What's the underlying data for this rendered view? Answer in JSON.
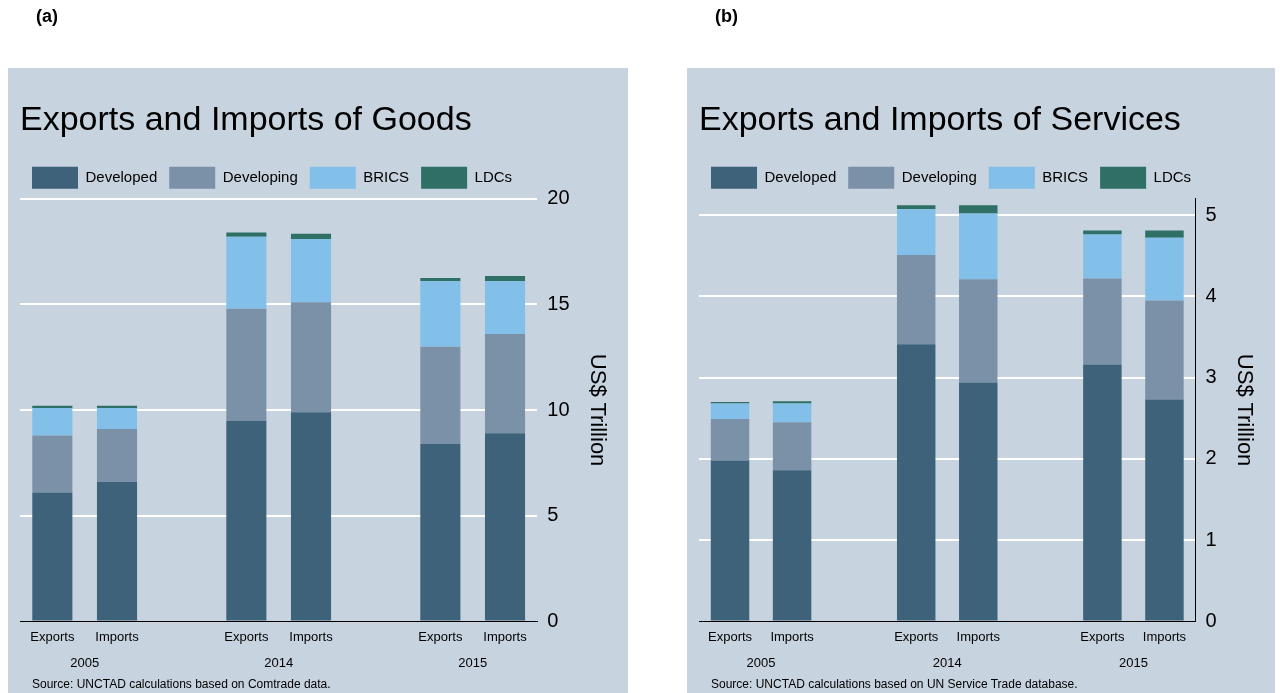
{
  "chart_data": [
    {
      "type": "bar",
      "stacked": true,
      "subtitle": "(a)",
      "title": "Exports and Imports of Goods",
      "ylabel": "US$ Trillion",
      "categories": [
        "Exports",
        "Imports",
        null,
        "Exports",
        "Imports",
        null,
        "Exports",
        "Imports"
      ],
      "series": [
        {
          "name": "Developed",
          "color": "#3d627a",
          "values": [
            6.1,
            6.6,
            null,
            9.5,
            9.9,
            null,
            8.4,
            8.9
          ]
        },
        {
          "name": "Developing",
          "color": "#7b91a8",
          "values": [
            2.7,
            2.5,
            null,
            5.3,
            5.2,
            null,
            4.6,
            4.7
          ]
        },
        {
          "name": "BRICS",
          "color": "#82bfe9",
          "values": [
            1.3,
            1.0,
            null,
            3.4,
            3.0,
            null,
            3.1,
            2.5
          ]
        },
        {
          "name": "LDCs",
          "color": "#2e7065",
          "values": [
            0.1,
            0.1,
            null,
            0.2,
            0.25,
            null,
            0.15,
            0.25
          ]
        }
      ],
      "ylim": [
        0,
        20
      ],
      "yticks": [
        0,
        5,
        10,
        15,
        20
      ],
      "grid": "y",
      "legend": "top",
      "annotations": [
        "2005",
        "2014",
        "2015",
        "Source: UNCTAD calculations based on Comtrade data."
      ]
    },
    {
      "type": "bar",
      "stacked": true,
      "subtitle": "(b)",
      "title": "Exports and Imports of Services",
      "ylabel": "US$ Trillion",
      "categories": [
        "Exports",
        "Imports",
        null,
        "Exports",
        "Imports",
        null,
        "Exports",
        "Imports"
      ],
      "series": [
        {
          "name": "Developed",
          "color": "#3d627a",
          "values": [
            1.98,
            1.86,
            null,
            3.41,
            2.94,
            null,
            3.16,
            2.73
          ]
        },
        {
          "name": "Developing",
          "color": "#7b91a8",
          "values": [
            0.51,
            0.59,
            null,
            1.1,
            1.27,
            null,
            1.06,
            1.22
          ]
        },
        {
          "name": "BRICS",
          "color": "#82bfe9",
          "values": [
            0.19,
            0.23,
            null,
            0.56,
            0.81,
            null,
            0.54,
            0.77
          ]
        },
        {
          "name": "LDCs",
          "color": "#2e7065",
          "values": [
            0.02,
            0.03,
            null,
            0.05,
            0.1,
            null,
            0.05,
            0.09
          ]
        }
      ],
      "ylim": [
        0,
        5.2
      ],
      "yticks": [
        0,
        1,
        2,
        3,
        4,
        5
      ],
      "grid": "y",
      "legend": "top",
      "annotations": [
        "2005",
        "2014",
        "2015",
        "Source: UNCTAD calculations based on UN Service Trade database."
      ]
    }
  ]
}
